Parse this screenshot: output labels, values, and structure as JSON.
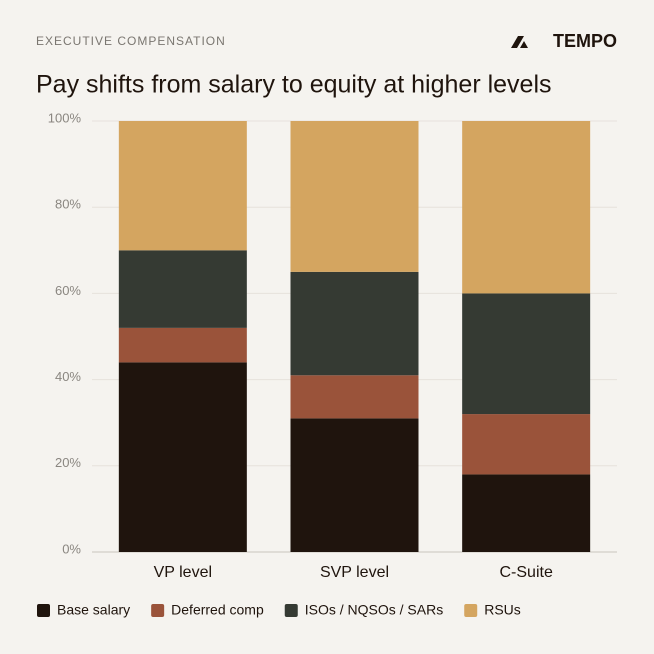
{
  "header": {
    "eyebrow": "EXECUTIVE COMPENSATION",
    "brand": "TEMPO"
  },
  "chart_data": {
    "type": "stacked-bar",
    "title": "Pay shifts from salary to equity at higher levels",
    "categories": [
      "VP level",
      "SVP level",
      "C-Suite"
    ],
    "series": [
      {
        "name": "Base salary",
        "color": "#1f140d",
        "values": [
          44,
          31,
          18
        ]
      },
      {
        "name": "Deferred comp",
        "color": "#9a533a",
        "values": [
          8,
          10,
          14
        ]
      },
      {
        "name": "ISOs / NQSOs / SARs",
        "color": "#353a33",
        "values": [
          18,
          24,
          28
        ]
      },
      {
        "name": "RSUs",
        "color": "#d4a560",
        "values": [
          30,
          35,
          40
        ]
      }
    ],
    "ylim": [
      0,
      100
    ],
    "yticks": [
      {
        "value": 0,
        "label": "0%"
      },
      {
        "value": 20,
        "label": "20%"
      },
      {
        "value": 40,
        "label": "40%"
      },
      {
        "value": 60,
        "label": "60%"
      },
      {
        "value": 80,
        "label": "80%"
      },
      {
        "value": 100,
        "label": "100%"
      }
    ],
    "grid": true,
    "legend": "bottom"
  }
}
